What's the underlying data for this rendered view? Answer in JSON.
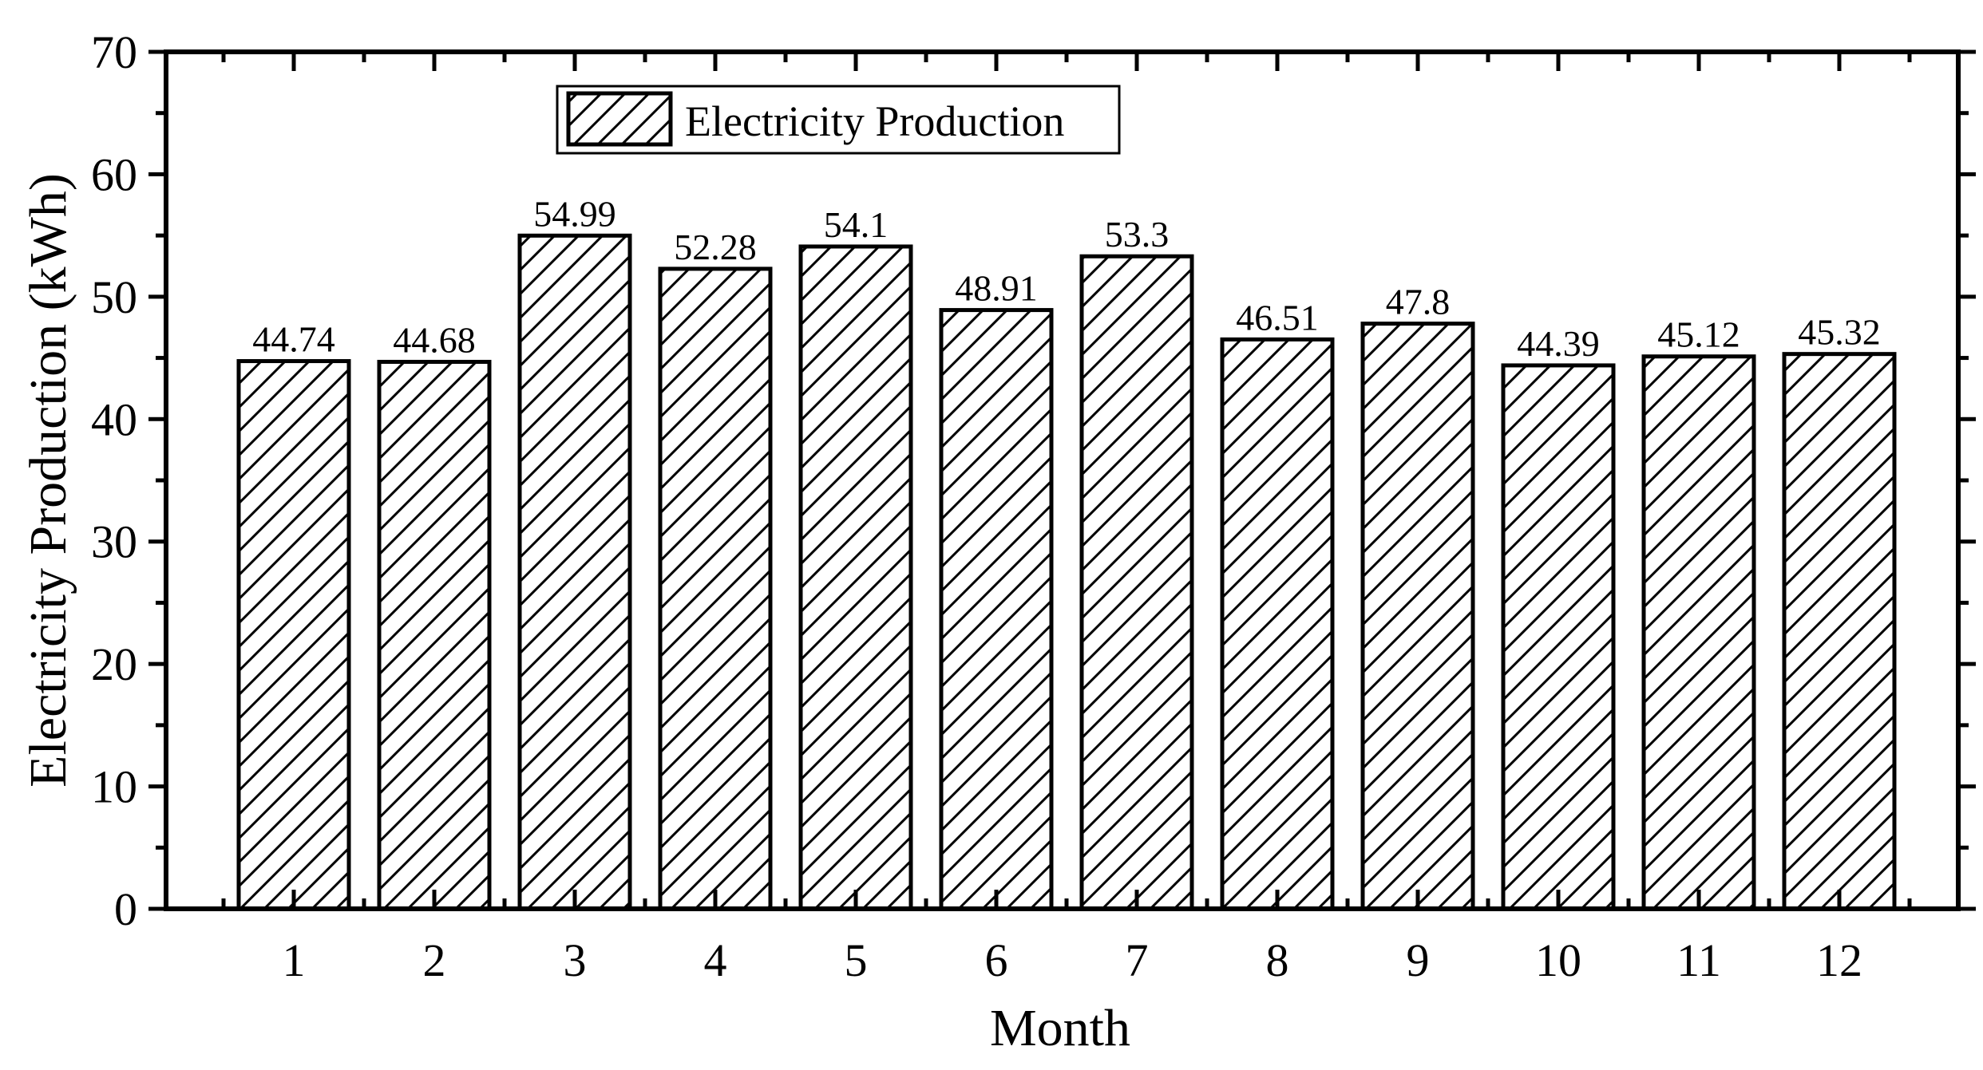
{
  "chart_data": {
    "type": "bar",
    "title": "",
    "xlabel": "Month",
    "ylabel": "Electricity Production (kWh)",
    "categories": [
      "1",
      "2",
      "3",
      "4",
      "5",
      "6",
      "7",
      "8",
      "9",
      "10",
      "11",
      "12"
    ],
    "series": [
      {
        "name": "Electricity Production",
        "values": [
          44.74,
          44.68,
          54.99,
          52.28,
          54.1,
          48.91,
          53.3,
          46.51,
          47.8,
          44.39,
          45.12,
          45.32
        ],
        "labels": [
          "44.74",
          "44.68",
          "54.99",
          "52.28",
          "54.1",
          "48.91",
          "53.3",
          "46.51",
          "47.8",
          "44.39",
          "45.12",
          "45.32"
        ],
        "fill": "hatched"
      }
    ],
    "ylim": [
      0,
      70
    ],
    "yticks": [
      "0",
      "10",
      "20",
      "30",
      "40",
      "50",
      "60",
      "70"
    ],
    "grid": false,
    "legend_position": "top-left"
  },
  "colors": {
    "axis": "#000000",
    "bar_stroke": "#000000",
    "bar_fill": "#ffffff",
    "hatch": "#000000"
  }
}
